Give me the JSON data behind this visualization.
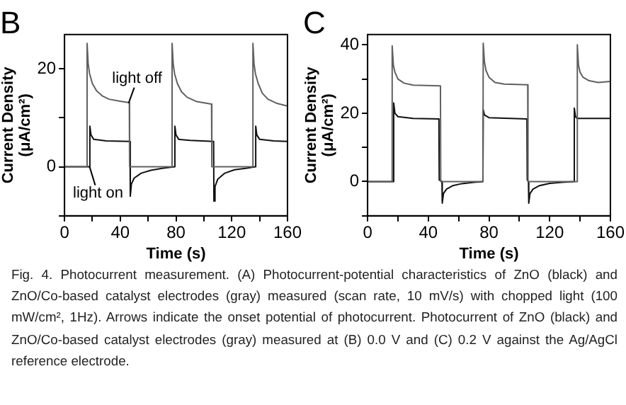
{
  "chart_data": [
    {
      "type": "line",
      "title": "B",
      "xlabel": "Time (s)",
      "ylabel": "Current Density\n(μA/cm²)",
      "xlim": [
        0,
        160
      ],
      "ylim": [
        -10,
        27
      ],
      "xticks": [
        0,
        {
          "value": 20,
          "label": null
        },
        40,
        {
          "value": 60,
          "label": null
        },
        80,
        {
          "value": 100,
          "label": null
        },
        120,
        {
          "value": 140,
          "label": null
        },
        160
      ],
      "yticks": [
        {
          "value": -10,
          "label": null
        },
        0,
        {
          "value": 10,
          "label": null
        },
        20
      ],
      "grid": false,
      "legend": false,
      "marker": "none",
      "line_style": "solid",
      "series": [
        {
          "color": "#606060",
          "x": [
            0,
            16,
            16.2,
            17,
            18,
            20,
            23,
            27,
            32,
            40,
            46.5,
            46.7,
            77,
            77.2,
            78,
            79,
            81,
            84,
            88,
            95,
            105.5,
            105.7,
            135,
            135.2,
            136,
            137,
            139,
            142,
            146,
            152,
            160
          ],
          "values": [
            0,
            0,
            25.2,
            21,
            19,
            17,
            15.5,
            14.5,
            13.8,
            13.4,
            13.1,
            0,
            0,
            25.2,
            21,
            19,
            17,
            15.3,
            14.2,
            13.3,
            12.8,
            0,
            0,
            25.2,
            21,
            19,
            17,
            15,
            13.8,
            13,
            12.4
          ]
        },
        {
          "color": "#111111",
          "x": [
            0,
            18,
            18.2,
            19,
            21,
            30,
            47,
            47.2,
            48,
            50,
            55,
            62,
            70,
            79,
            79.2,
            80,
            82,
            90,
            107,
            107.2,
            108,
            110,
            115,
            122,
            130,
            137,
            137.2,
            138,
            140,
            150,
            160
          ],
          "values": [
            0,
            0,
            8.3,
            6.5,
            5.6,
            5.3,
            5.2,
            -6,
            -3.5,
            -2.3,
            -1.3,
            -0.7,
            -0.3,
            0,
            8.3,
            6.5,
            5.6,
            5.4,
            5.2,
            -7,
            -4,
            -2.5,
            -1.3,
            -0.6,
            -0.3,
            0,
            8.3,
            6.5,
            5.6,
            5.3,
            5.2
          ]
        }
      ],
      "annotations": [
        {
          "text": "light off",
          "x": 46,
          "y": 13
        },
        {
          "text": "light on",
          "x": 18,
          "y": 0
        },
        "Fig. 4.    Photocurrent measurement. (A) Photocurrent-potential characteristics of ZnO (black) and ZnO/Co-based catalyst electrodes (gray) measured (scan rate, 10 mV/s) with chopped light (100 mW/cm², 1Hz). Arrows indicate the onset potential of photocurrent. Photocurrent of ZnO (black) and ZnO/Co-based catalyst electrodes (gray) measured at (B) 0.0 V and (C) 0.2 V against the Ag/AgCl reference electrode."
      ]
    },
    {
      "type": "line",
      "title": "C",
      "xlabel": "Time (s)",
      "ylabel": "Current Density\n(μA/cm²)",
      "xlim": [
        0,
        160
      ],
      "ylim": [
        -10,
        43
      ],
      "xticks": [
        0,
        {
          "value": 20,
          "label": null
        },
        40,
        {
          "value": 60,
          "label": null
        },
        80,
        {
          "value": 100,
          "label": null
        },
        120,
        {
          "value": 140,
          "label": null
        },
        160
      ],
      "yticks": [
        {
          "value": -10,
          "label": null
        },
        0,
        {
          "value": 10,
          "label": null
        },
        20,
        {
          "value": 30,
          "label": null
        },
        40
      ],
      "grid": false,
      "legend": false,
      "marker": "none",
      "line_style": "solid",
      "series": [
        {
          "color": "#606060",
          "x": [
            0,
            16,
            16.2,
            17,
            18,
            20,
            24,
            30,
            48,
            48.2,
            76,
            76.2,
            77,
            78,
            80,
            84,
            90,
            105.5,
            105.7,
            138,
            138.2,
            139,
            140,
            142,
            146,
            152,
            160
          ],
          "values": [
            0,
            0,
            39.7,
            34,
            32,
            30,
            28.8,
            28.2,
            28,
            0,
            0,
            40.5,
            35,
            32.5,
            30.5,
            29,
            28.5,
            28.3,
            0,
            0,
            40,
            34,
            32,
            30.5,
            29.5,
            29,
            29.3
          ]
        },
        {
          "color": "#111111",
          "x": [
            0,
            17,
            17.2,
            18,
            20,
            30,
            47,
            47.2,
            49,
            49.2,
            50,
            52,
            56,
            62,
            70,
            76,
            76.2,
            77,
            80,
            105,
            105.2,
            106,
            106.2,
            107,
            109,
            113,
            120,
            128,
            136,
            136.2,
            137,
            138,
            160
          ],
          "values": [
            0,
            0,
            23,
            20,
            19,
            18.5,
            18.3,
            0.5,
            0,
            -6.3,
            -3.5,
            -2.2,
            -1.2,
            -0.6,
            -0.2,
            0,
            21,
            19.5,
            18.7,
            18.3,
            0.5,
            0,
            -6.3,
            -3.5,
            -2.2,
            -1.2,
            -0.5,
            -0.2,
            0,
            21.5,
            19,
            18.5,
            18.5
          ]
        }
      ]
    }
  ]
}
